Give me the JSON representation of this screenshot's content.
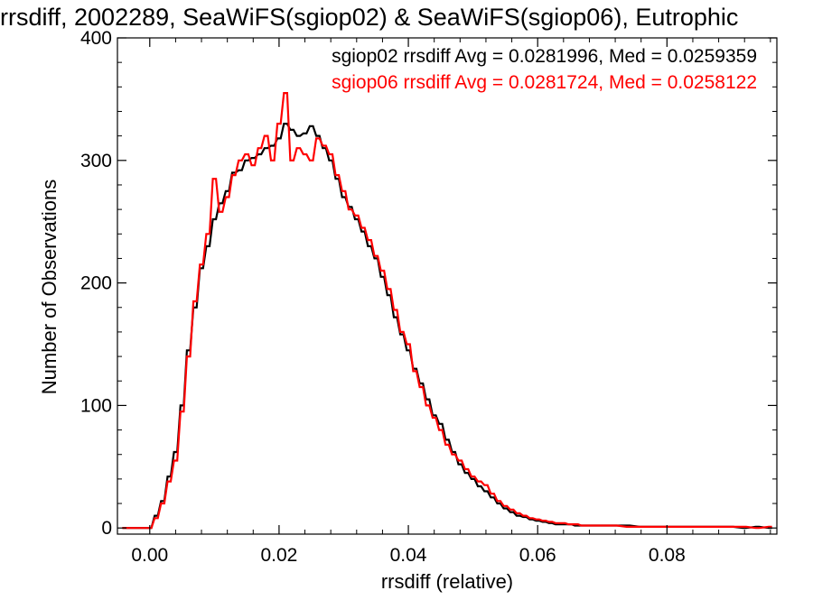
{
  "chart_data": {
    "type": "histogram",
    "title": "rrsdiff, 2002289, SeaWiFS(sgiop02) & SeaWiFS(sgiop06), Eutrophic",
    "xlabel": "rrsdiff (relative)",
    "ylabel": "Number of Observations",
    "xlim": [
      -0.005,
      0.097
    ],
    "ylim": [
      -5,
      400
    ],
    "x_ticks": [
      0.0,
      0.02,
      0.04,
      0.06,
      0.08
    ],
    "x_tick_labels": [
      "0.00",
      "0.02",
      "0.04",
      "0.06",
      "0.08"
    ],
    "y_ticks": [
      0,
      100,
      200,
      300,
      400
    ],
    "y_tick_labels": [
      "0",
      "100",
      "200",
      "300",
      "400"
    ],
    "bin_width": 0.0005,
    "legend_position": "top-right",
    "series": [
      {
        "name": "sgiop02",
        "color": "#000000",
        "annotation": "sgiop02 rrsdiff Avg = 0.0281996, Med = 0.0259359",
        "avg": 0.0281996,
        "median": 0.0259359,
        "x": [
          -0.004,
          -0.003,
          -0.002,
          -0.001,
          0.0,
          0.001,
          0.002,
          0.003,
          0.004,
          0.005,
          0.006,
          0.007,
          0.008,
          0.009,
          0.01,
          0.011,
          0.012,
          0.013,
          0.014,
          0.015,
          0.016,
          0.017,
          0.018,
          0.019,
          0.02,
          0.021,
          0.022,
          0.023,
          0.024,
          0.025,
          0.026,
          0.027,
          0.028,
          0.029,
          0.03,
          0.031,
          0.032,
          0.033,
          0.034,
          0.035,
          0.036,
          0.037,
          0.038,
          0.039,
          0.04,
          0.041,
          0.042,
          0.043,
          0.044,
          0.045,
          0.046,
          0.047,
          0.048,
          0.049,
          0.05,
          0.051,
          0.052,
          0.053,
          0.054,
          0.055,
          0.056,
          0.057,
          0.058,
          0.059,
          0.06,
          0.061,
          0.062,
          0.063,
          0.064,
          0.065,
          0.066,
          0.067,
          0.068,
          0.069,
          0.07,
          0.072,
          0.074,
          0.076,
          0.078,
          0.08,
          0.082,
          0.084,
          0.086,
          0.088,
          0.09,
          0.092,
          0.094,
          0.096
        ],
        "y": [
          0,
          0,
          0,
          0,
          0,
          10,
          22,
          42,
          62,
          100,
          145,
          180,
          212,
          230,
          252,
          265,
          275,
          290,
          292,
          300,
          302,
          305,
          310,
          312,
          318,
          330,
          325,
          320,
          322,
          328,
          320,
          310,
          300,
          285,
          270,
          262,
          252,
          242,
          230,
          220,
          205,
          190,
          172,
          158,
          145,
          130,
          118,
          105,
          92,
          85,
          72,
          62,
          52,
          45,
          40,
          34,
          30,
          25,
          20,
          16,
          13,
          10,
          9,
          7,
          6,
          5,
          4,
          3,
          3,
          3,
          2,
          2,
          2,
          2,
          2,
          2,
          2,
          1,
          1,
          1,
          1,
          1,
          1,
          1,
          1,
          0,
          1,
          0
        ]
      },
      {
        "name": "sgiop06",
        "color": "#ff0000",
        "annotation": "sgiop06 rrsdiff Avg = 0.0281724, Med = 0.0258122",
        "avg": 0.0281724,
        "median": 0.0258122,
        "x": [
          -0.004,
          -0.003,
          -0.002,
          -0.001,
          0.0,
          0.001,
          0.002,
          0.003,
          0.004,
          0.005,
          0.006,
          0.007,
          0.008,
          0.009,
          0.01,
          0.011,
          0.012,
          0.013,
          0.014,
          0.015,
          0.016,
          0.017,
          0.018,
          0.019,
          0.02,
          0.021,
          0.022,
          0.023,
          0.024,
          0.025,
          0.026,
          0.027,
          0.028,
          0.029,
          0.03,
          0.031,
          0.032,
          0.033,
          0.034,
          0.035,
          0.036,
          0.037,
          0.038,
          0.039,
          0.04,
          0.041,
          0.042,
          0.043,
          0.044,
          0.045,
          0.046,
          0.047,
          0.048,
          0.049,
          0.05,
          0.051,
          0.052,
          0.053,
          0.054,
          0.055,
          0.056,
          0.057,
          0.058,
          0.059,
          0.06,
          0.061,
          0.062,
          0.063,
          0.064,
          0.065,
          0.066,
          0.067,
          0.068,
          0.069,
          0.07,
          0.072,
          0.074,
          0.076,
          0.078,
          0.08,
          0.082,
          0.084,
          0.086,
          0.088,
          0.09,
          0.092,
          0.094,
          0.096
        ],
        "y": [
          0,
          0,
          0,
          0,
          0,
          8,
          20,
          38,
          55,
          95,
          140,
          185,
          215,
          240,
          285,
          258,
          270,
          288,
          300,
          305,
          296,
          310,
          320,
          300,
          330,
          355,
          300,
          310,
          305,
          300,
          318,
          312,
          305,
          288,
          275,
          260,
          255,
          245,
          235,
          222,
          210,
          195,
          178,
          160,
          150,
          128,
          115,
          100,
          90,
          80,
          68,
          60,
          55,
          48,
          42,
          38,
          35,
          28,
          22,
          18,
          15,
          12,
          10,
          8,
          7,
          6,
          5,
          4,
          4,
          3,
          3,
          2,
          2,
          2,
          2,
          2,
          1,
          1,
          1,
          1,
          1,
          1,
          1,
          1,
          1,
          1,
          0,
          1
        ]
      }
    ]
  }
}
